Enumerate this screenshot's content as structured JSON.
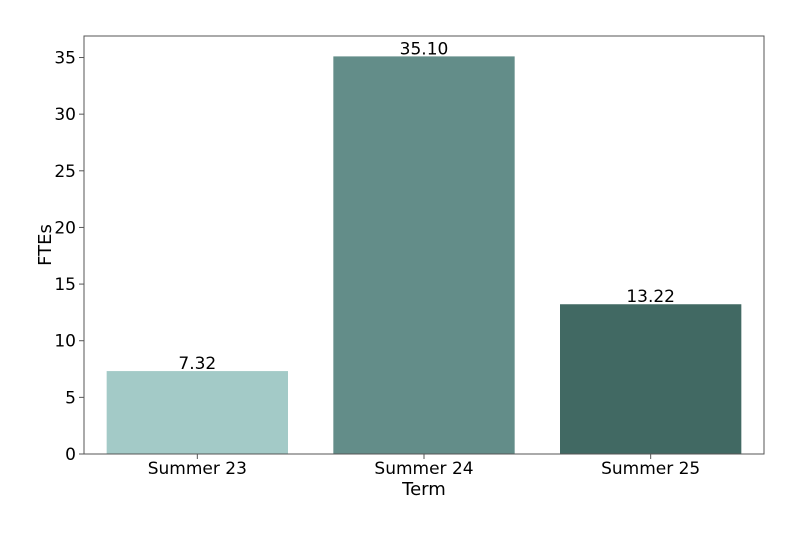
{
  "chart_data": {
    "type": "bar",
    "categories": [
      "Summer 23",
      "Summer 24",
      "Summer 25"
    ],
    "values": [
      7.32,
      35.1,
      13.22
    ],
    "value_labels": [
      "7.32",
      "35.10",
      "13.22"
    ],
    "colors": [
      "#a3cac7",
      "#638d89",
      "#416963"
    ],
    "xlabel": "Term",
    "ylabel": "FTEs",
    "ylim": [
      0,
      36.9
    ],
    "yticks": [
      0,
      5,
      10,
      15,
      20,
      25,
      30,
      35
    ],
    "grid": false,
    "legend": "none"
  }
}
